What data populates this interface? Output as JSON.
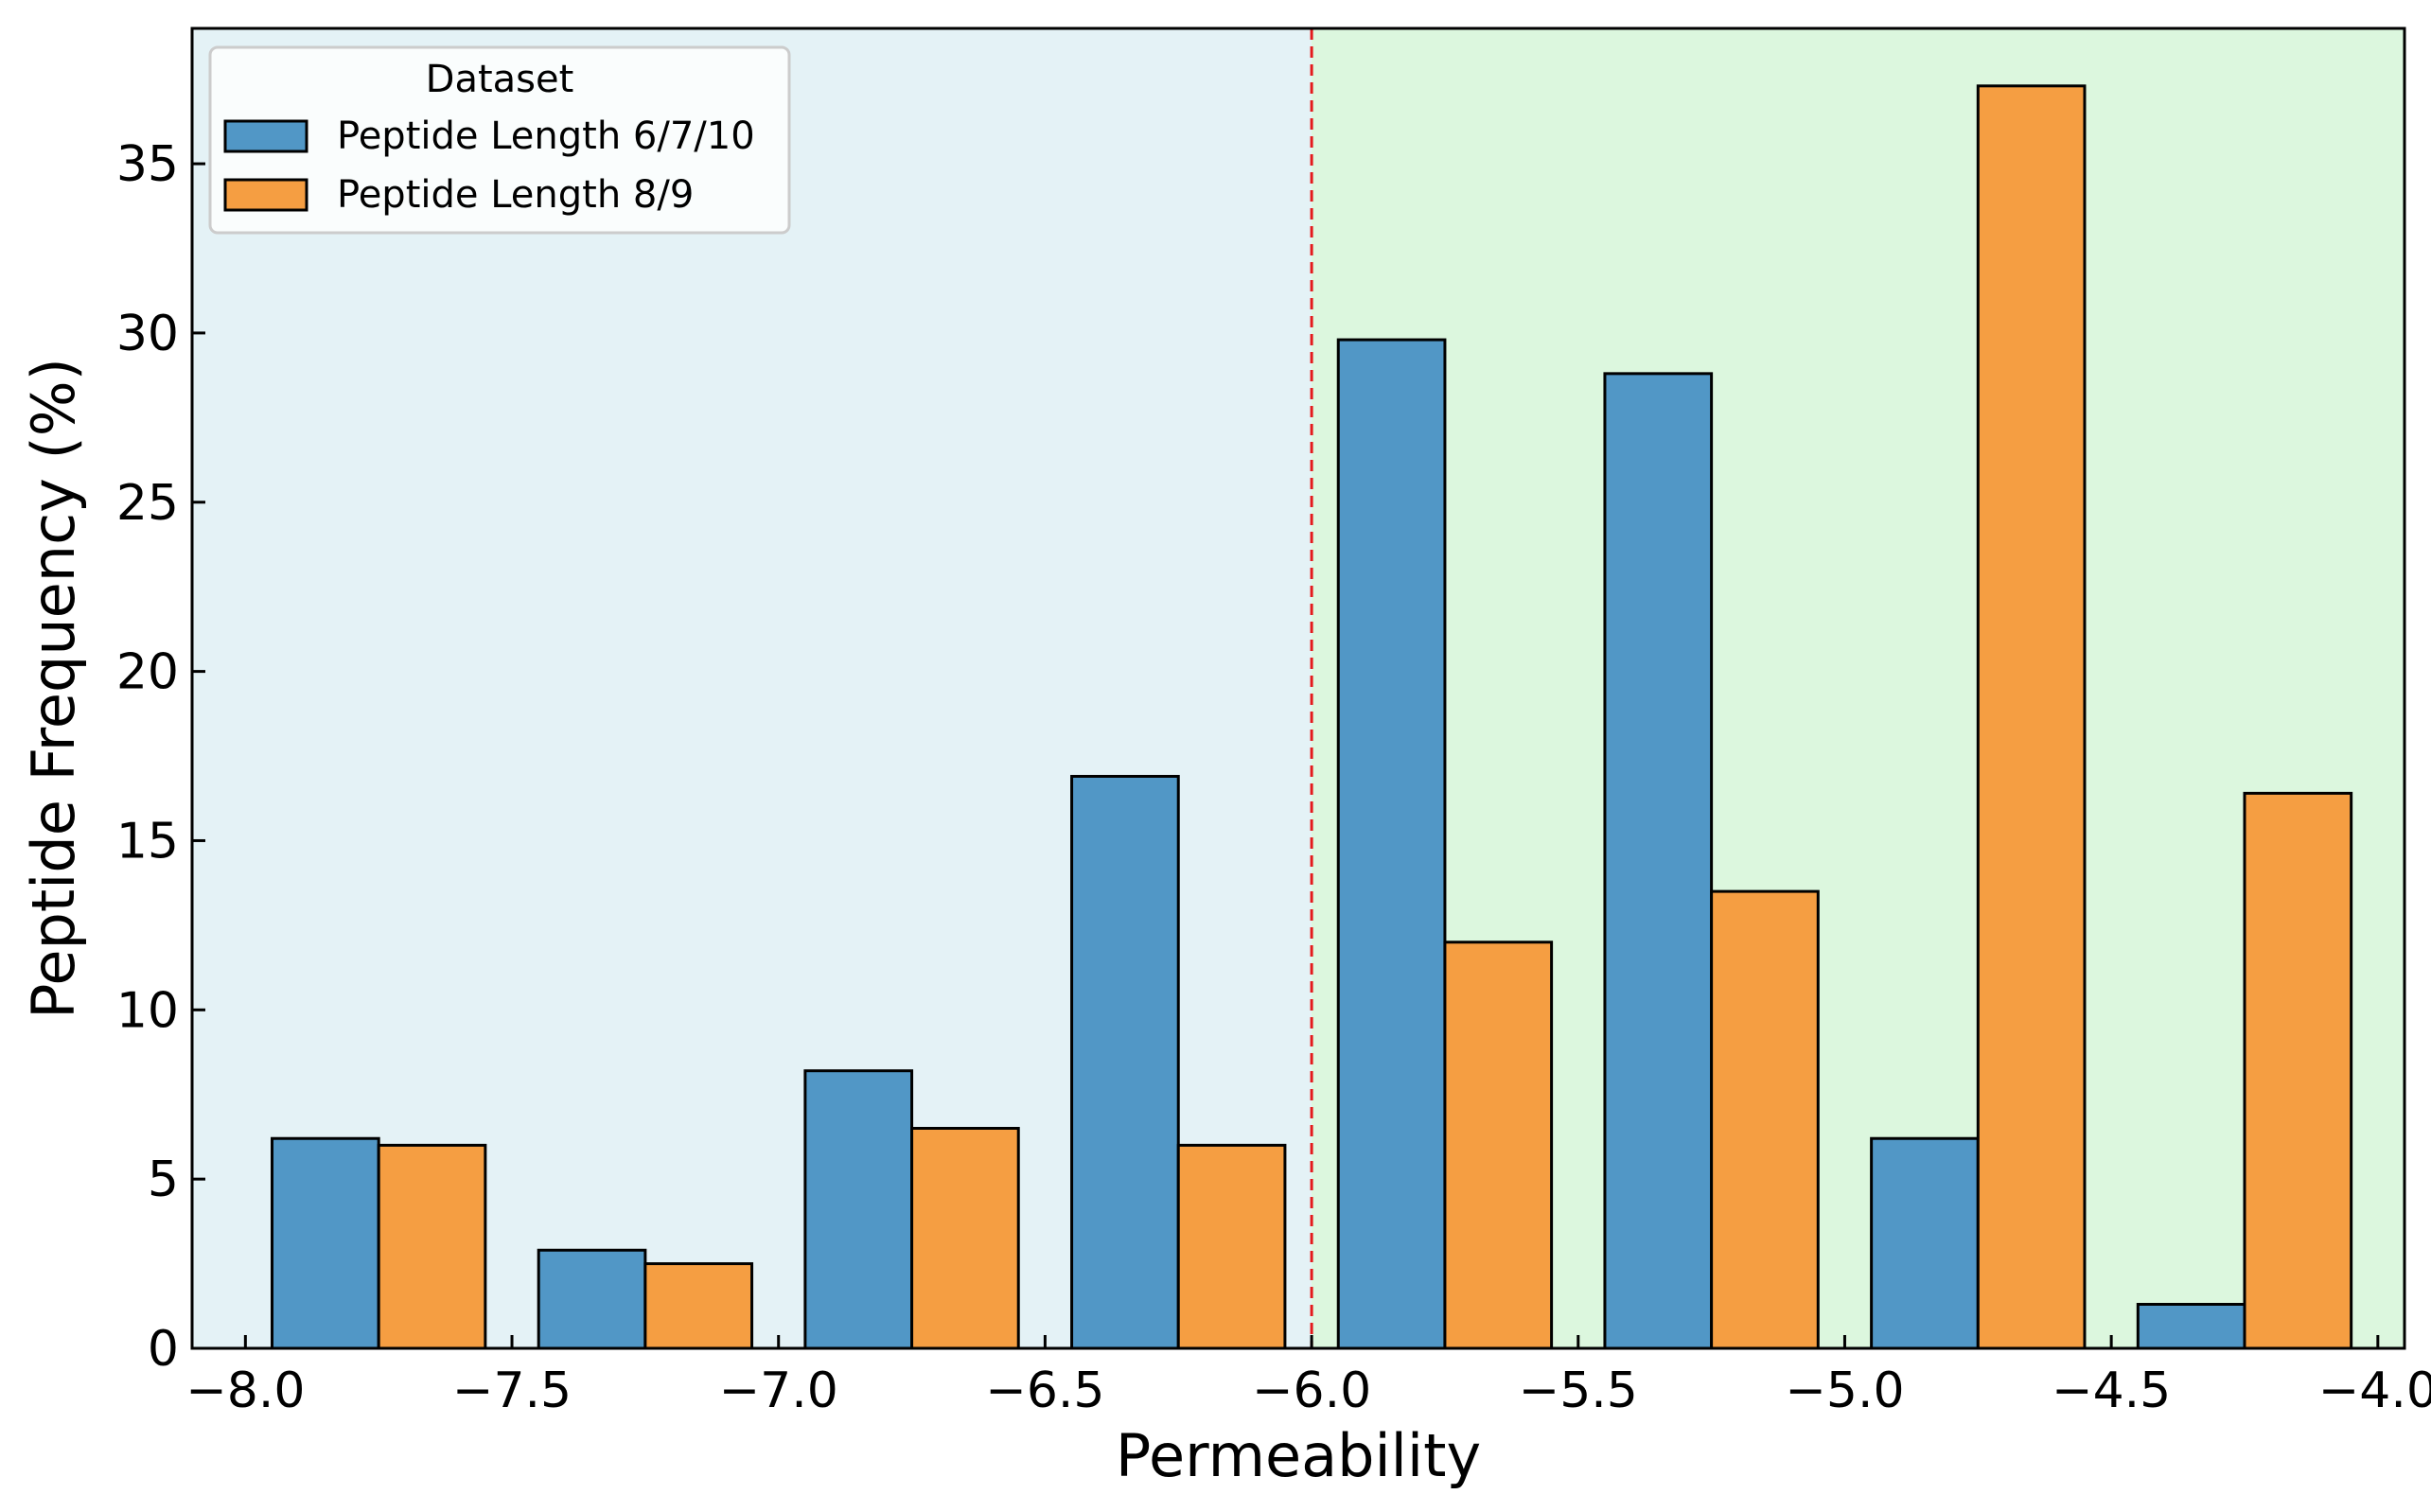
{
  "chart_data": {
    "type": "bar",
    "title": "",
    "xlabel": "Permeability",
    "ylabel": "Peptide Frequency (%)",
    "xlim": [
      -8.1,
      -3.95
    ],
    "ylim": [
      0,
      39
    ],
    "x_ticks": [
      -8.0,
      -7.5,
      -7.0,
      -6.5,
      -6.0,
      -5.5,
      -5.0,
      -4.5,
      -4.0
    ],
    "x_tick_labels": [
      "−8.0",
      "−7.5",
      "−7.0",
      "−6.5",
      "−6.0",
      "−5.5",
      "−5.0",
      "−4.5",
      "−4.0"
    ],
    "y_ticks": [
      0,
      5,
      10,
      15,
      20,
      25,
      30,
      35
    ],
    "y_tick_labels": [
      "0",
      "5",
      "10",
      "15",
      "20",
      "25",
      "30",
      "35"
    ],
    "threshold": {
      "x": -6.0,
      "color": "#e41a1c",
      "style": "dashed"
    },
    "regions": [
      {
        "from": -8.1,
        "to": -6.0,
        "color": "#e4f2f6"
      },
      {
        "from": -6.0,
        "to": -3.95,
        "color": "#dcf7de"
      }
    ],
    "bin_edges": [
      -7.95,
      -7.45,
      -6.95,
      -6.45,
      -5.95,
      -5.45,
      -4.95,
      -4.45,
      -3.95
    ],
    "bar_width": 0.2,
    "series": [
      {
        "name": "Peptide Length 6/7/10",
        "color": "#5197c6",
        "values": [
          6.2,
          2.9,
          8.2,
          16.9,
          29.8,
          28.8,
          6.2,
          1.3
        ]
      },
      {
        "name": "Peptide Length 8/9",
        "color": "#f59e42",
        "values": [
          6.0,
          2.5,
          6.5,
          6.0,
          12.0,
          13.5,
          37.3,
          16.4
        ]
      }
    ],
    "legend": {
      "title": "Dataset",
      "position": "top-left",
      "entries": [
        "Peptide Length 6/7/10",
        "Peptide Length 8/9"
      ]
    },
    "grid": false
  }
}
